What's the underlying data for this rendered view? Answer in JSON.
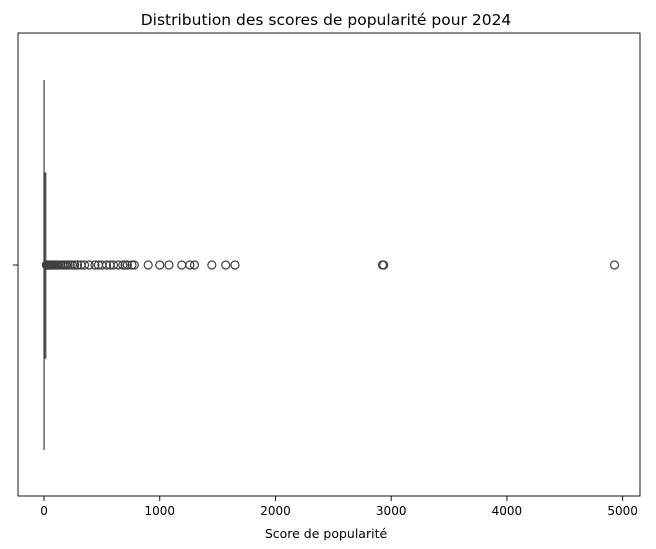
{
  "chart_data": {
    "type": "boxplot",
    "orientation": "horizontal",
    "title": "Distribution des scores de popularité pour 2024",
    "xlabel": "Score de popularité",
    "ylabel": "",
    "xlim": [
      -225,
      5150
    ],
    "xticks": [
      0,
      1000,
      2000,
      3000,
      4000,
      5000
    ],
    "xtick_labels": [
      "0",
      "1000",
      "2000",
      "3000",
      "4000",
      "5000"
    ],
    "grid": false,
    "colors": {
      "box_edge": "#3f3f3f",
      "box_fill": "#ffffff",
      "frame": "#000000"
    },
    "box": {
      "min": 0,
      "q1": 2,
      "median": 4,
      "q3": 8,
      "whisker_high": 17
    },
    "outliers": [
      20,
      24,
      28,
      33,
      38,
      44,
      50,
      57,
      65,
      73,
      82,
      92,
      103,
      115,
      128,
      142,
      157,
      173,
      190,
      208,
      226,
      245,
      265,
      290,
      320,
      350,
      390,
      440,
      470,
      500,
      540,
      570,
      600,
      640,
      680,
      700,
      720,
      760,
      780,
      900,
      1000,
      1080,
      1190,
      1260,
      1300,
      1450,
      1570,
      1650,
      2925,
      2935,
      4930
    ]
  }
}
